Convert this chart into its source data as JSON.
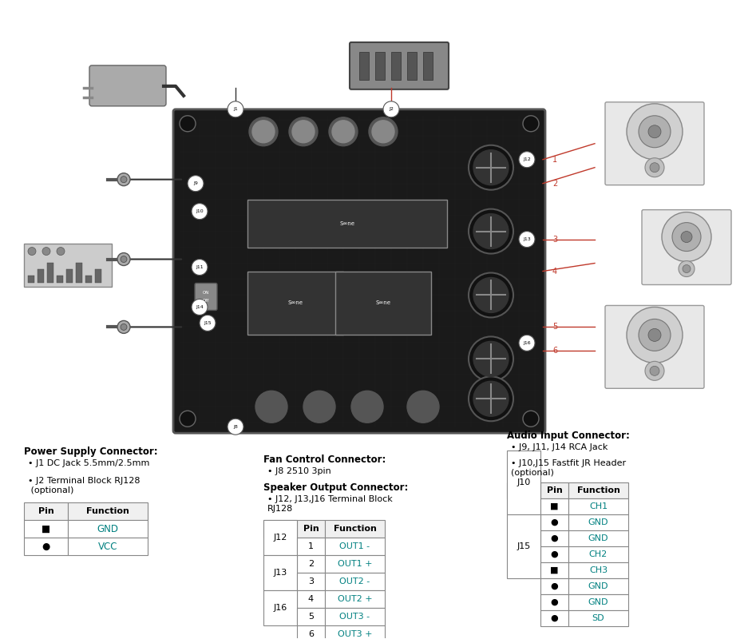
{
  "bg_color": "#ffffff",
  "text_color": "#000000",
  "teal_color": "#008080",
  "header_color": "#1a1a1a",
  "power_supply": {
    "title": "Power Supply Connector:",
    "bullets": [
      "J1 DC Jack 5.5mm/2.5mm",
      "J2 Terminal Block RJ128\n (optional)"
    ],
    "table_headers": [
      "Pin",
      "Function"
    ],
    "table_rows": [
      [
        "■",
        "GND"
      ],
      [
        "●",
        "VCC"
      ]
    ]
  },
  "fan_control": {
    "title": "Fan Control Connector:",
    "bullets": [
      "J8 2510 3pin"
    ]
  },
  "speaker_output": {
    "title": "Speaker Output Connector:",
    "bullets": [
      "J12, J13,J16 Terminal Block\nRJ128"
    ],
    "table_headers": [
      "",
      "Pin",
      "Function"
    ],
    "table_rows": [
      [
        "J12",
        "1",
        "OUT1 -"
      ],
      [
        "J12",
        "2",
        "OUT1 +"
      ],
      [
        "J13",
        "3",
        "OUT2 -"
      ],
      [
        "J13",
        "4",
        "OUT2 +"
      ],
      [
        "J16",
        "5",
        "OUT3 -"
      ],
      [
        "J16",
        "6",
        "OUT3 +"
      ]
    ]
  },
  "audio_input": {
    "title": "Audio Input Connector:",
    "bullets": [
      "J9, J11, J14 RCA Jack",
      "J10,J15 Fastfit JR Header\n(optional)"
    ],
    "table_headers": [
      "",
      "Pin",
      "Function"
    ],
    "table_rows": [
      [
        "J10",
        "■",
        "CH1"
      ],
      [
        "J10",
        "●",
        "GND"
      ],
      [
        "J10",
        "●",
        "GND"
      ],
      [
        "J10",
        "●",
        "CH2"
      ],
      [
        "J15",
        "■",
        "CH3"
      ],
      [
        "J15",
        "●",
        "GND"
      ],
      [
        "J15",
        "●",
        "GND"
      ],
      [
        "J15",
        "●",
        "SD"
      ]
    ]
  },
  "connector_labels": [
    "J1",
    "J2",
    "J8",
    "J9",
    "J10",
    "J11",
    "J12",
    "J13",
    "J14",
    "J15",
    "J16"
  ],
  "num_labels": [
    "1",
    "2",
    "3",
    "4",
    "5",
    "6"
  ]
}
